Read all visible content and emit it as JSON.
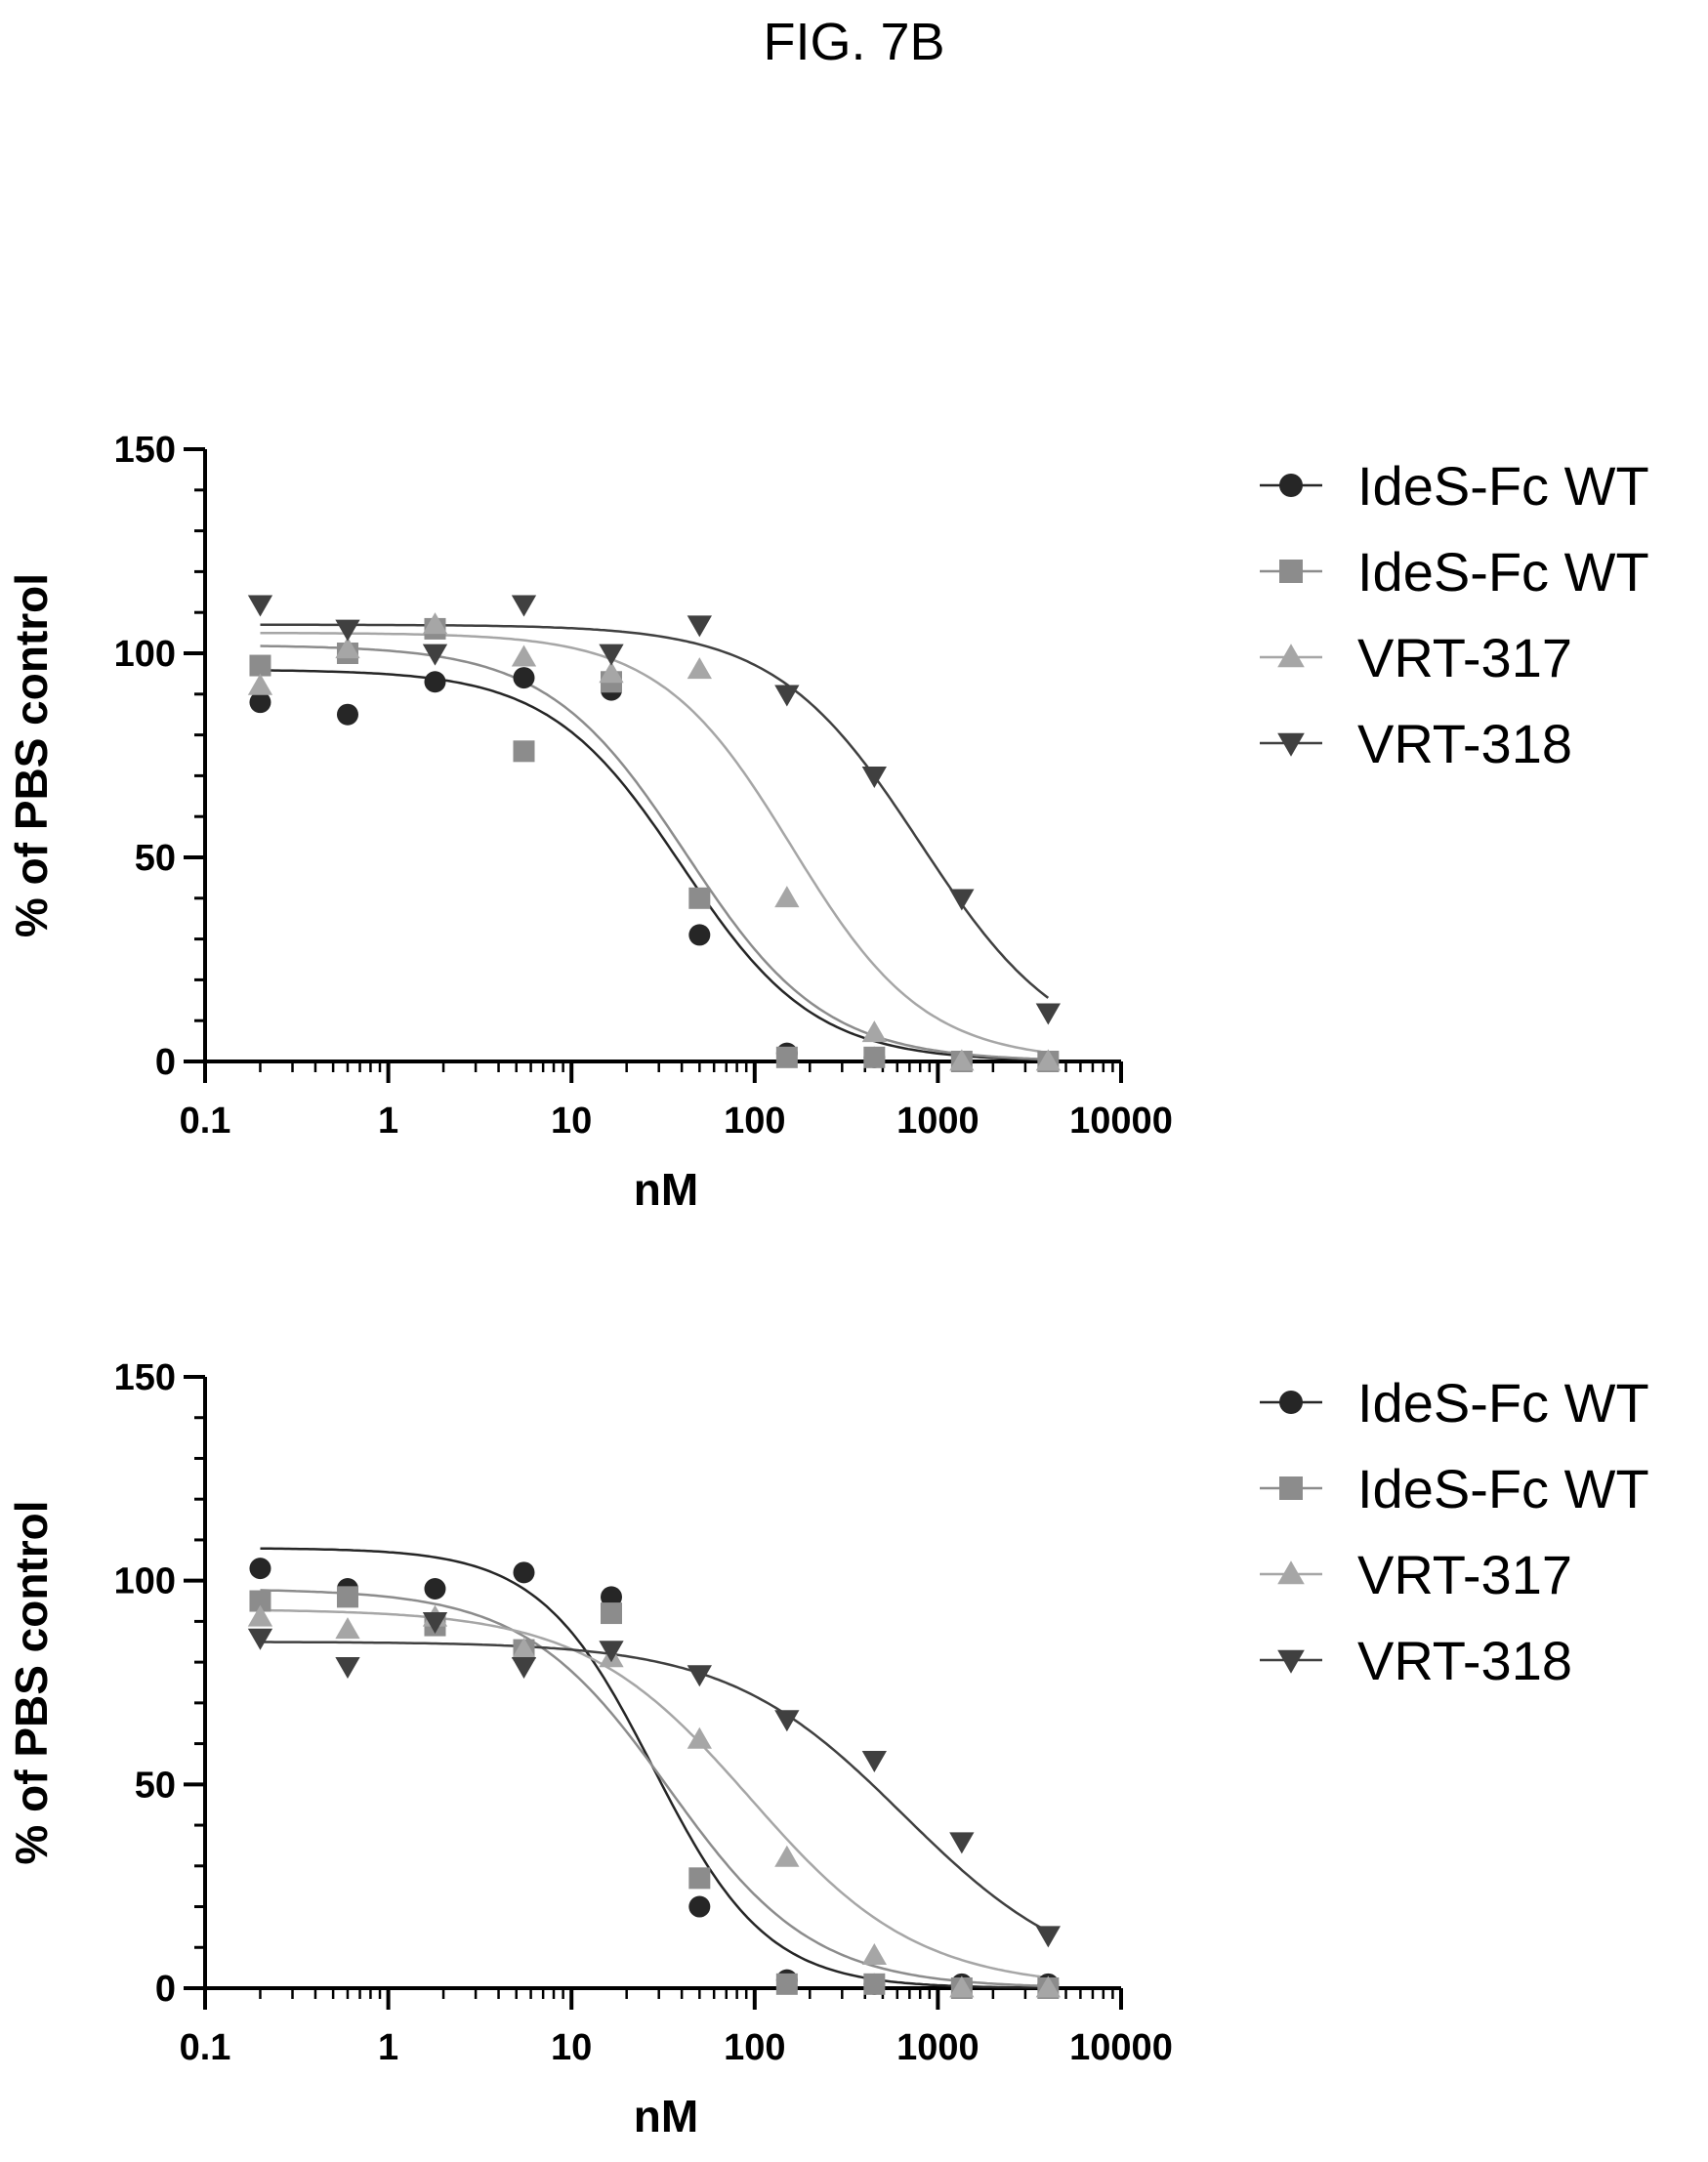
{
  "figure": {
    "title": "FIG. 7B"
  },
  "chart_data": [
    {
      "type": "scatter",
      "title": "",
      "xlabel": "nM",
      "ylabel": "% of PBS control",
      "xscale": "log",
      "xlim": [
        0.1,
        10000
      ],
      "ylim": [
        0,
        150
      ],
      "xticks": [
        "0.1",
        "1",
        "10",
        "100",
        "1000",
        "10000"
      ],
      "yticks": [
        "0",
        "50",
        "100",
        "150"
      ],
      "grid": false,
      "legend": "right",
      "series": [
        {
          "name": "IdeS-Fc WT",
          "marker": "circle",
          "color": "#262626",
          "x": [
            0.2,
            0.6,
            1.8,
            5.5,
            16.5,
            50,
            150,
            450,
            1350,
            4000
          ],
          "y": [
            88,
            85,
            93,
            94,
            91,
            31,
            2,
            1,
            0,
            0
          ],
          "fit": {
            "top": 96,
            "bottom": 0,
            "ec50": 40,
            "hill": 1.2
          }
        },
        {
          "name": "IdeS-Fc WT",
          "marker": "square",
          "color": "#8c8c8c",
          "x": [
            0.2,
            0.6,
            1.8,
            5.5,
            16.5,
            50,
            150,
            450,
            1350,
            4000
          ],
          "y": [
            97,
            100,
            106,
            76,
            93,
            40,
            1,
            1,
            0,
            0
          ],
          "fit": {
            "top": 102,
            "bottom": 0,
            "ec50": 42,
            "hill": 1.15
          }
        },
        {
          "name": "VRT-317",
          "marker": "triangle-up",
          "color": "#a6a6a6",
          "x": [
            0.2,
            0.6,
            1.8,
            5.5,
            16.5,
            50,
            150,
            450,
            1350,
            4000
          ],
          "y": [
            92,
            101,
            107,
            99,
            95,
            96,
            40,
            7,
            0,
            0
          ],
          "fit": {
            "top": 105,
            "bottom": 0,
            "ec50": 160,
            "hill": 1.2
          }
        },
        {
          "name": "VRT-318",
          "marker": "triangle-down",
          "color": "#404040",
          "x": [
            0.2,
            0.6,
            1.8,
            5.5,
            16.5,
            50,
            150,
            450,
            1350,
            4000
          ],
          "y": [
            112,
            106,
            100,
            112,
            100,
            107,
            90,
            70,
            40,
            12
          ],
          "fit": {
            "top": 107,
            "bottom": 0,
            "ec50": 800,
            "hill": 1.1
          }
        }
      ]
    },
    {
      "type": "scatter",
      "title": "",
      "xlabel": "nM",
      "ylabel": "% of PBS control",
      "xscale": "log",
      "xlim": [
        0.1,
        10000
      ],
      "ylim": [
        0,
        150
      ],
      "xticks": [
        "0.1",
        "1",
        "10",
        "100",
        "1000",
        "10000"
      ],
      "yticks": [
        "0",
        "50",
        "100",
        "150"
      ],
      "grid": false,
      "legend": "right",
      "series": [
        {
          "name": "IdeS-Fc WT",
          "marker": "circle",
          "color": "#262626",
          "x": [
            0.2,
            0.6,
            1.8,
            5.5,
            16.5,
            50,
            150,
            450,
            1350,
            4000
          ],
          "y": [
            103,
            98,
            98,
            102,
            96,
            20,
            2,
            1,
            1,
            1
          ],
          "fit": {
            "top": 108,
            "bottom": 0,
            "ec50": 28,
            "hill": 1.4
          }
        },
        {
          "name": "IdeS-Fc WT",
          "marker": "square",
          "color": "#8c8c8c",
          "x": [
            0.2,
            0.6,
            1.8,
            5.5,
            16.5,
            50,
            150,
            450,
            1350,
            4000
          ],
          "y": [
            95,
            96,
            89,
            83,
            92,
            27,
            1,
            1,
            0,
            0
          ],
          "fit": {
            "top": 98,
            "bottom": 0,
            "ec50": 34,
            "hill": 1.1
          }
        },
        {
          "name": "VRT-317",
          "marker": "triangle-up",
          "color": "#a6a6a6",
          "x": [
            0.2,
            0.6,
            1.8,
            5.5,
            16.5,
            50,
            150,
            450,
            1350,
            4000
          ],
          "y": [
            91,
            88,
            91,
            83,
            81,
            61,
            32,
            8,
            0,
            0
          ],
          "fit": {
            "top": 93,
            "bottom": 0,
            "ec50": 95,
            "hill": 0.95
          }
        },
        {
          "name": "VRT-318",
          "marker": "triangle-down",
          "color": "#404040",
          "x": [
            0.2,
            0.6,
            1.8,
            5.5,
            16.5,
            50,
            150,
            450,
            1350,
            4000
          ],
          "y": [
            86,
            79,
            90,
            79,
            83,
            77,
            66,
            56,
            36,
            13
          ],
          "fit": {
            "top": 85,
            "bottom": 0,
            "ec50": 650,
            "hill": 0.9
          }
        }
      ]
    }
  ]
}
